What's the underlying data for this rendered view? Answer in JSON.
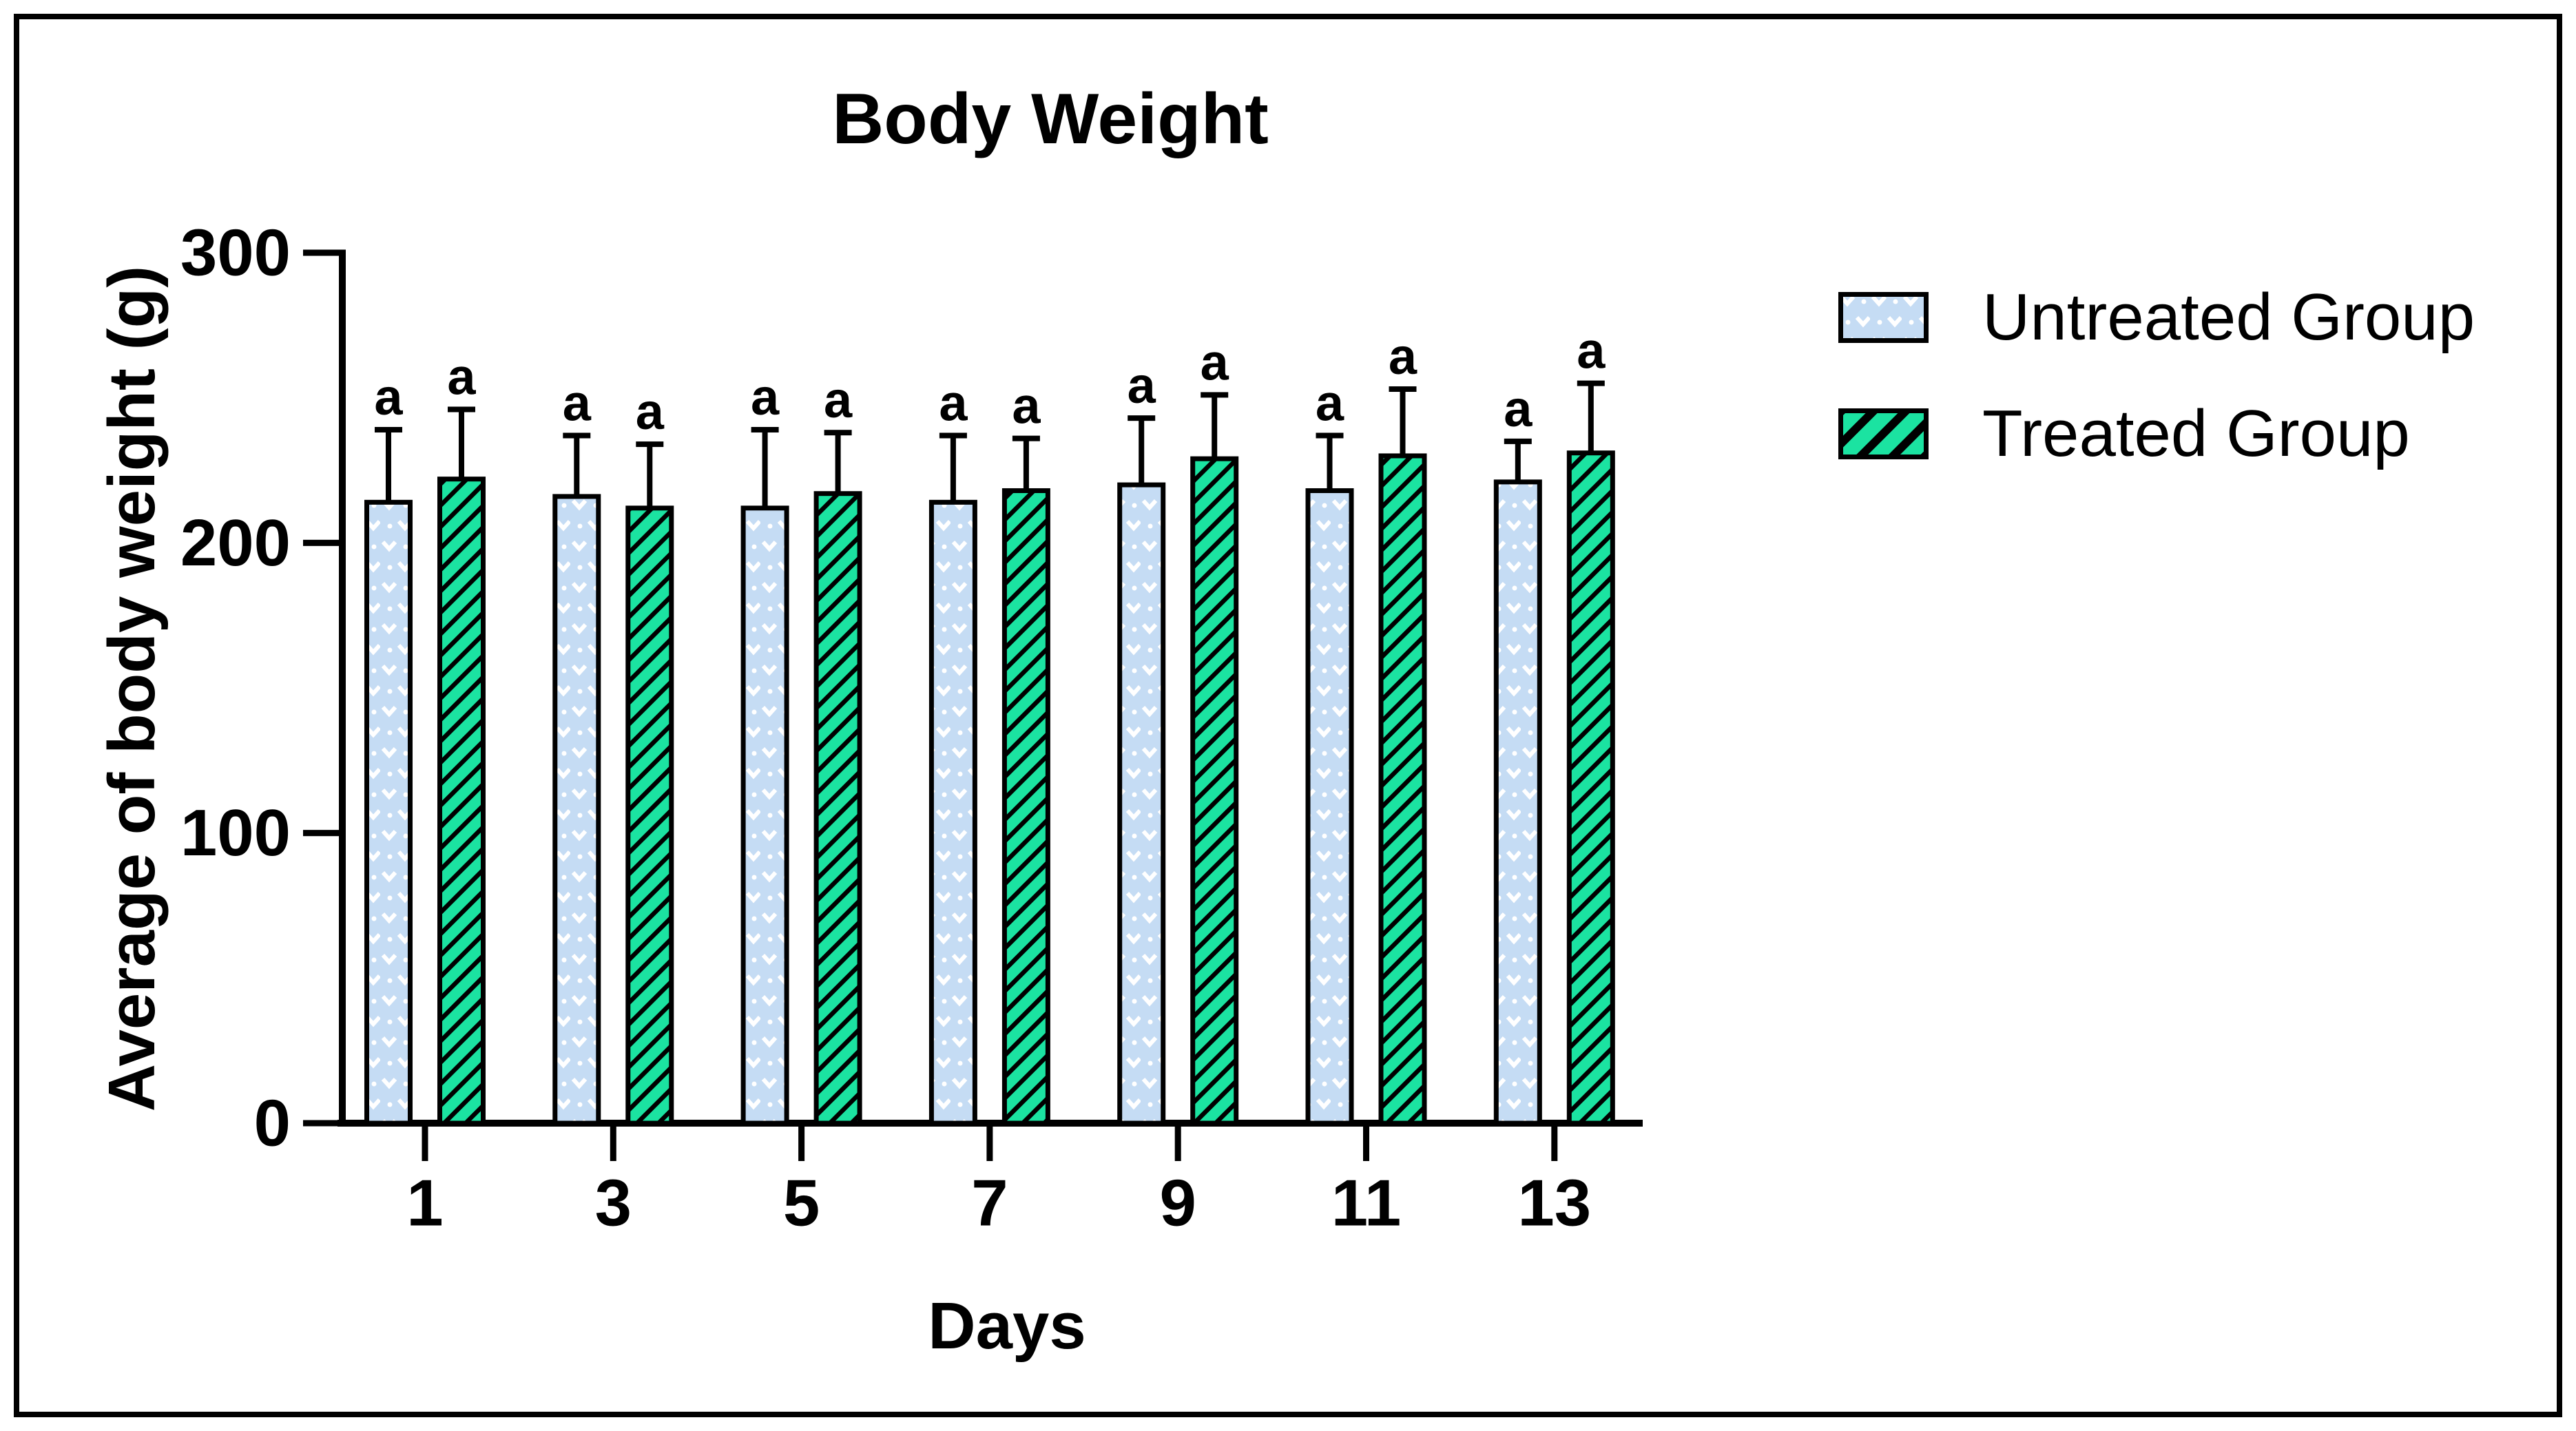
{
  "figure": {
    "title": "Body Weight",
    "x_axis_label": "Days",
    "y_axis_label": "Average of body weight (g)"
  },
  "legend": {
    "position": "right",
    "items": [
      {
        "key": "untreated",
        "label": "Untreated Group",
        "swatch_icon": "chevron-dot-pattern-swatch"
      },
      {
        "key": "treated",
        "label": "Treated Group",
        "swatch_icon": "diagonal-hatch-pattern-swatch"
      }
    ]
  },
  "colors": {
    "ink": "#000000",
    "background": "#FFFFFF",
    "untreated_fill": "#C5DCF4",
    "untreated_pattern": "#FFFFFF",
    "treated_fill": "#1BE3A1",
    "treated_pattern": "#000000"
  },
  "chart_data": {
    "type": "bar",
    "title": "Body Weight",
    "xlabel": "Days",
    "ylabel": "Average of body weight (g)",
    "categories": [
      "1",
      "3",
      "5",
      "7",
      "9",
      "11",
      "13"
    ],
    "series": [
      {
        "name": "Untreated Group",
        "key": "untreated",
        "values": [
          214,
          216,
          212,
          214,
          220,
          218,
          221
        ],
        "errors": [
          25,
          21,
          27,
          23,
          23,
          19,
          14
        ],
        "bar_labels": [
          "a",
          "a",
          "a",
          "a",
          "a",
          "a",
          "a"
        ]
      },
      {
        "name": "Treated Group",
        "key": "treated",
        "values": [
          222,
          212,
          217,
          218,
          229,
          230,
          231
        ],
        "errors": [
          24,
          22,
          21,
          18,
          22,
          23,
          24
        ],
        "bar_labels": [
          "a",
          "a",
          "a",
          "a",
          "a",
          "a",
          "a"
        ]
      }
    ],
    "ylim": [
      0,
      300
    ],
    "yticks": [
      0,
      100,
      200,
      300
    ],
    "error_bars": "upper whisker with cap",
    "annotation_letter": "a",
    "legend_position": "right",
    "grid": false
  }
}
